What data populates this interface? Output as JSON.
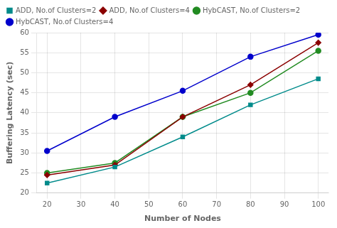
{
  "chart_data": {
    "type": "line",
    "x": [
      20,
      40,
      60,
      80,
      100
    ],
    "series": [
      {
        "name": "ADD, No.of Clusters=2",
        "color": "#008B8B",
        "marker": "square",
        "values": [
          22.5,
          26.5,
          34.0,
          42.0,
          48.5
        ]
      },
      {
        "name": "ADD, No.of Clusters=4",
        "color": "#8B0000",
        "marker": "diamond",
        "values": [
          24.5,
          27.0,
          39.0,
          47.0,
          57.5
        ]
      },
      {
        "name": "HybCAST, No.of Clusters=2",
        "color": "#228B22",
        "marker": "circle",
        "values": [
          25.0,
          27.5,
          39.0,
          45.0,
          55.5
        ]
      },
      {
        "name": "HybCAST, No.of Clusters=4",
        "color": "#0000CC",
        "marker": "circle",
        "values": [
          30.5,
          39.0,
          45.5,
          54.0,
          59.5
        ]
      }
    ],
    "xlabel": "Number of Nodes",
    "ylabel": "Buffering Latency (sec)",
    "xlim": [
      17,
      103
    ],
    "ylim": [
      20,
      60
    ],
    "xticks": [
      20,
      30,
      40,
      50,
      60,
      70,
      80,
      90,
      100
    ],
    "yticks": [
      20,
      25,
      30,
      35,
      40,
      45,
      50,
      55,
      60
    ],
    "grid": true,
    "legend": "upper left"
  }
}
